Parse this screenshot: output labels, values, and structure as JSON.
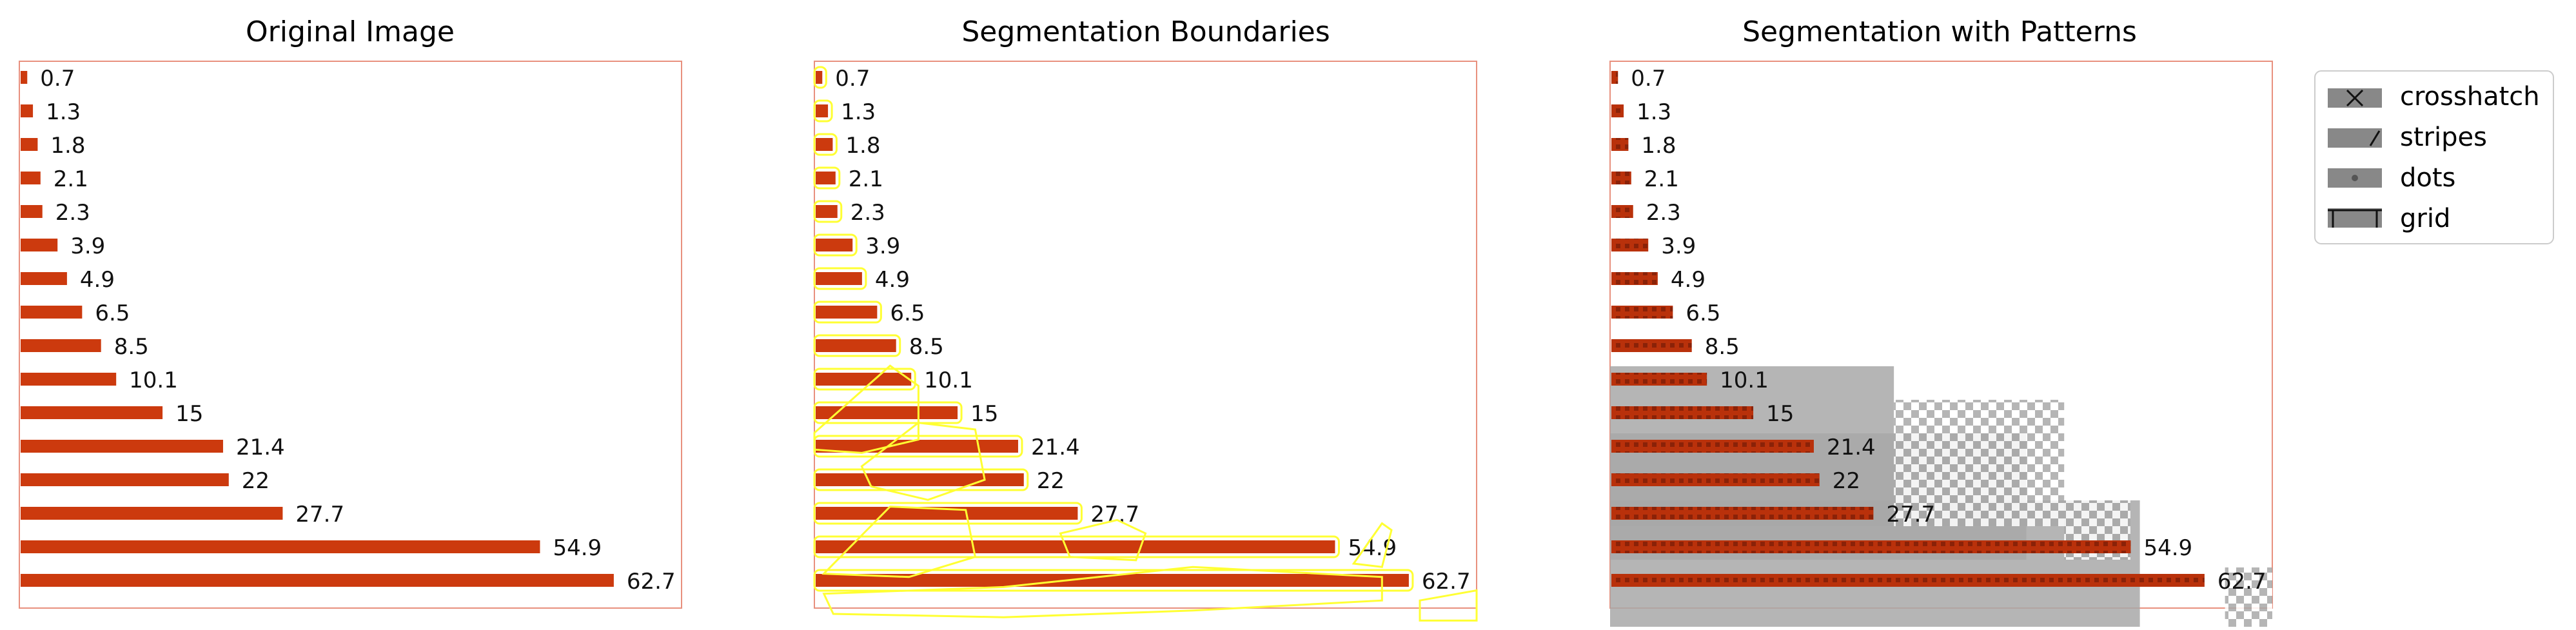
{
  "panels": [
    {
      "title": "Original Image"
    },
    {
      "title": "Segmentation Boundaries"
    },
    {
      "title": "Segmentation with Patterns"
    }
  ],
  "legend": {
    "placement": "right, top",
    "items": [
      {
        "label": "crosshatch",
        "icon": "crosshatch-swatch"
      },
      {
        "label": "stripes",
        "icon": "stripes-swatch"
      },
      {
        "label": "dots",
        "icon": "dots-swatch"
      },
      {
        "label": "grid",
        "icon": "grid-swatch"
      }
    ]
  },
  "colors": {
    "bar": "#cc3a0e",
    "frame": "#e8907e",
    "boundary": "#ffff33",
    "pattern_gray": "#a8a8a8",
    "swatch": "#888888"
  },
  "chart_data": {
    "type": "bar",
    "orientation": "horizontal",
    "values": [
      0.7,
      1.3,
      1.8,
      2.1,
      2.3,
      3.9,
      4.9,
      6.5,
      8.5,
      10.1,
      15,
      21.4,
      22,
      27.7,
      54.9,
      62.7
    ],
    "value_labels": [
      "0.7",
      "1.3",
      "1.8",
      "2.1",
      "2.3",
      "3.9",
      "4.9",
      "6.5",
      "8.5",
      "10.1",
      "15",
      "21.4",
      "22",
      "27.7",
      "54.9",
      "62.7"
    ],
    "xlim": [
      0,
      70
    ],
    "grid": false,
    "axes_visible": false
  }
}
